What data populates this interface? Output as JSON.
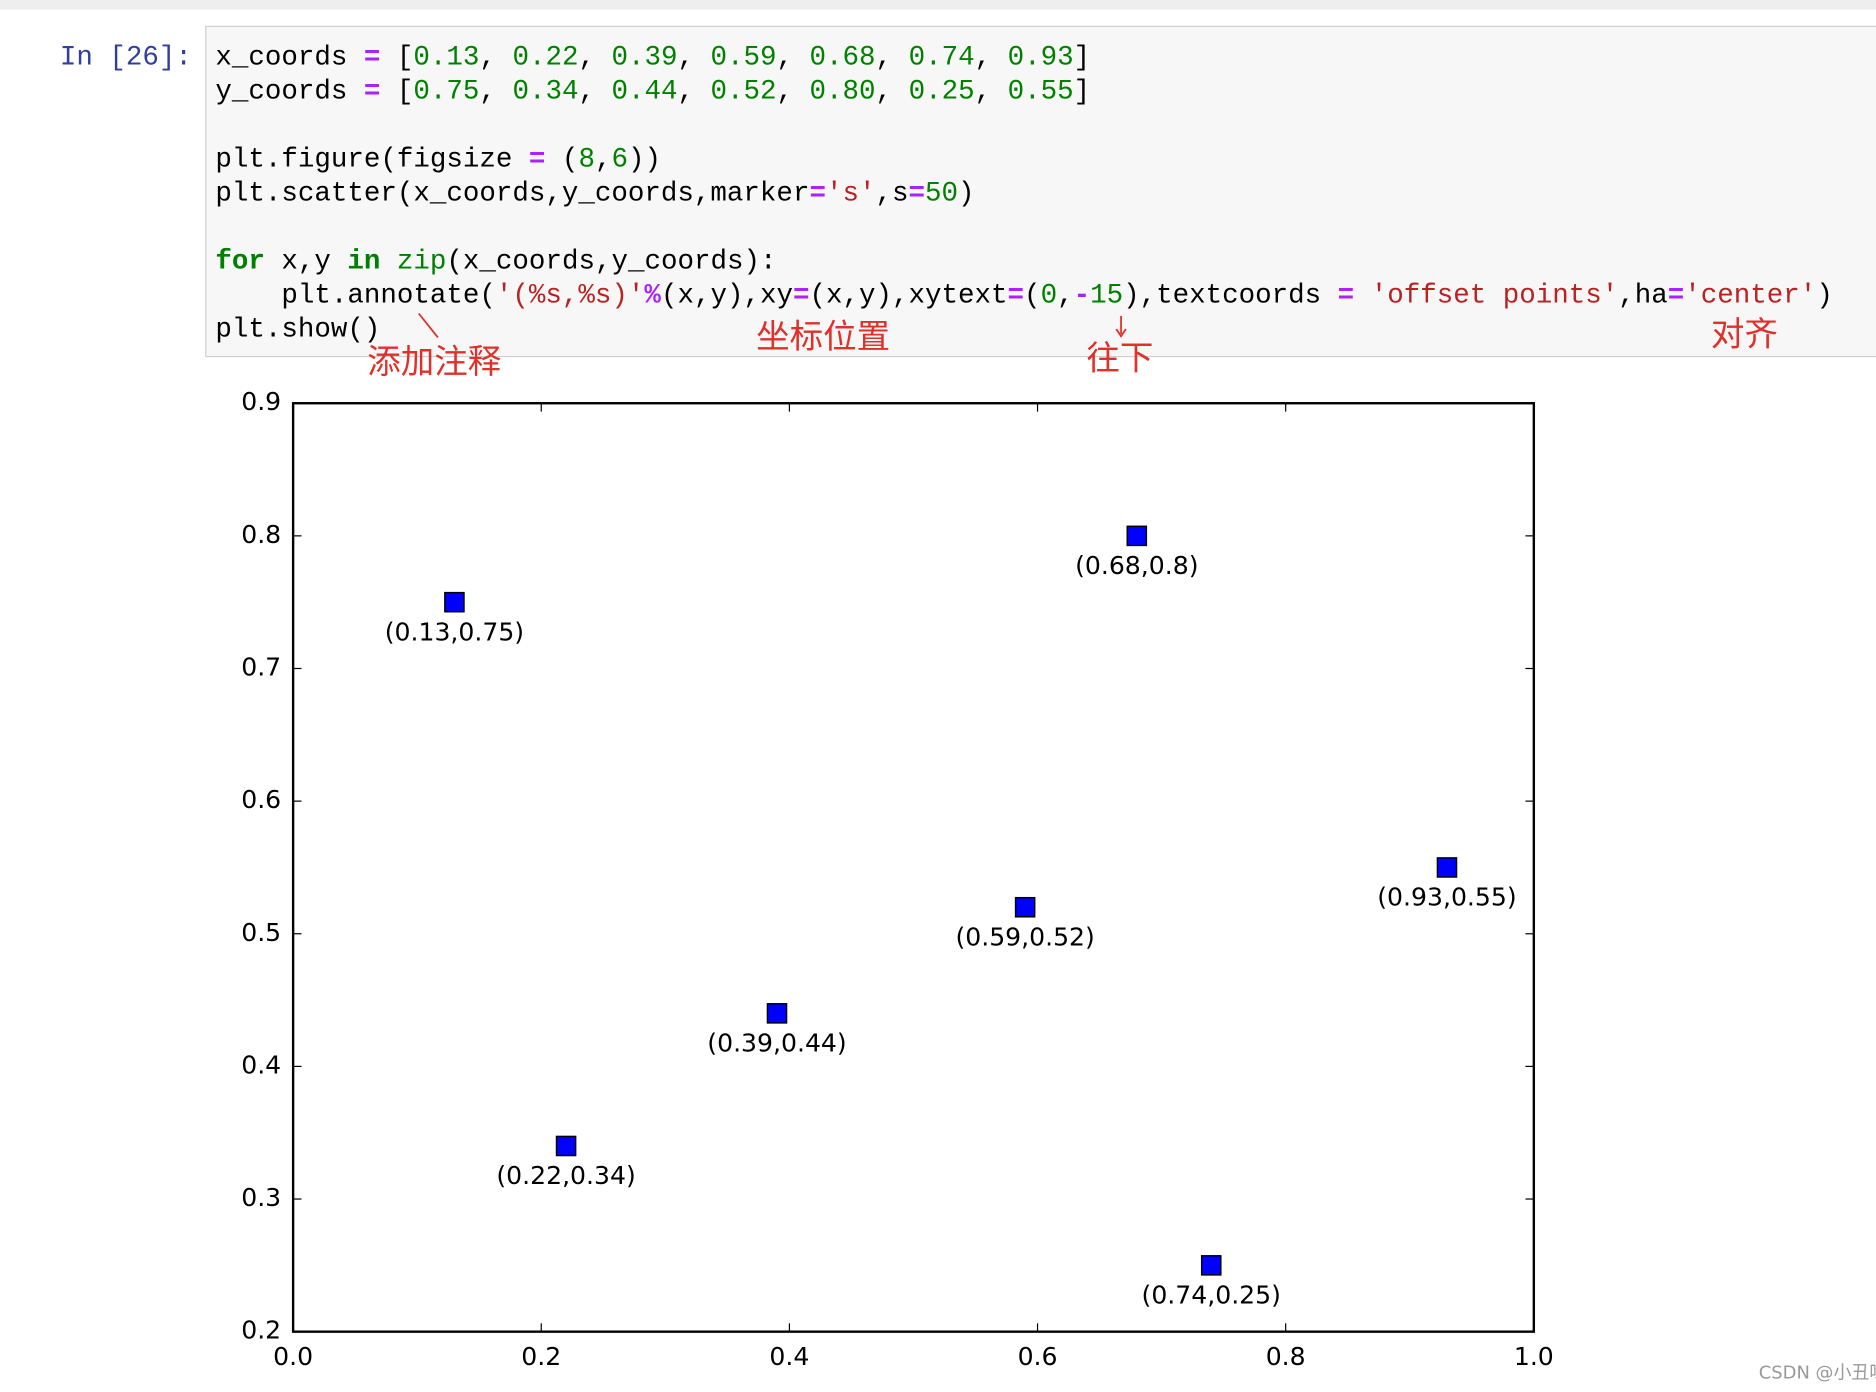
{
  "prompt": "In [26]:",
  "code": {
    "lines": [
      [
        {
          "t": "x_coords "
        },
        {
          "t": "=",
          "c": "#aa22ff",
          "b": true
        },
        {
          "t": " ["
        },
        {
          "t": "0.13",
          "c": "#008000"
        },
        {
          "t": ", "
        },
        {
          "t": "0.22",
          "c": "#008000"
        },
        {
          "t": ", "
        },
        {
          "t": "0.39",
          "c": "#008000"
        },
        {
          "t": ", "
        },
        {
          "t": "0.59",
          "c": "#008000"
        },
        {
          "t": ", "
        },
        {
          "t": "0.68",
          "c": "#008000"
        },
        {
          "t": ", "
        },
        {
          "t": "0.74",
          "c": "#008000"
        },
        {
          "t": ", "
        },
        {
          "t": "0.93",
          "c": "#008000"
        },
        {
          "t": "]"
        }
      ],
      [
        {
          "t": "y_coords "
        },
        {
          "t": "=",
          "c": "#aa22ff",
          "b": true
        },
        {
          "t": " ["
        },
        {
          "t": "0.75",
          "c": "#008000"
        },
        {
          "t": ", "
        },
        {
          "t": "0.34",
          "c": "#008000"
        },
        {
          "t": ", "
        },
        {
          "t": "0.44",
          "c": "#008000"
        },
        {
          "t": ", "
        },
        {
          "t": "0.52",
          "c": "#008000"
        },
        {
          "t": ", "
        },
        {
          "t": "0.80",
          "c": "#008000"
        },
        {
          "t": ", "
        },
        {
          "t": "0.25",
          "c": "#008000"
        },
        {
          "t": ", "
        },
        {
          "t": "0.55",
          "c": "#008000"
        },
        {
          "t": "]"
        }
      ],
      [],
      [
        {
          "t": "plt.figure(figsize "
        },
        {
          "t": "=",
          "c": "#aa22ff",
          "b": true
        },
        {
          "t": " ("
        },
        {
          "t": "8",
          "c": "#008000"
        },
        {
          "t": ","
        },
        {
          "t": "6",
          "c": "#008000"
        },
        {
          "t": "))"
        }
      ],
      [
        {
          "t": "plt.scatter(x_coords,y_coords,marker"
        },
        {
          "t": "=",
          "c": "#aa22ff",
          "b": true
        },
        {
          "t": "'s'",
          "c": "#ba2121"
        },
        {
          "t": ",s"
        },
        {
          "t": "=",
          "c": "#aa22ff",
          "b": true
        },
        {
          "t": "50",
          "c": "#008000"
        },
        {
          "t": ")"
        }
      ],
      [],
      [
        {
          "t": "for",
          "c": "#008000",
          "b": true
        },
        {
          "t": " x,y "
        },
        {
          "t": "in",
          "c": "#008000",
          "b": true
        },
        {
          "t": " "
        },
        {
          "t": "zip",
          "c": "#008000"
        },
        {
          "t": "(x_coords,y_coords):"
        }
      ],
      [
        {
          "t": "    plt.annotate("
        },
        {
          "t": "'(%s,%s)'",
          "c": "#ba2121"
        },
        {
          "t": "%",
          "c": "#aa22ff",
          "b": true
        },
        {
          "t": "(x,y),xy"
        },
        {
          "t": "=",
          "c": "#aa22ff",
          "b": true
        },
        {
          "t": "(x,y),xytext"
        },
        {
          "t": "=",
          "c": "#aa22ff",
          "b": true
        },
        {
          "t": "("
        },
        {
          "t": "0",
          "c": "#008000"
        },
        {
          "t": ","
        },
        {
          "t": "-",
          "c": "#aa22ff",
          "b": true
        },
        {
          "t": "15",
          "c": "#008000"
        },
        {
          "t": "),textcoords "
        },
        {
          "t": "=",
          "c": "#aa22ff",
          "b": true
        },
        {
          "t": " "
        },
        {
          "t": "'offset points'",
          "c": "#ba2121"
        },
        {
          "t": ",ha"
        },
        {
          "t": "=",
          "c": "#aa22ff",
          "b": true
        },
        {
          "t": "'center'",
          "c": "#ba2121"
        },
        {
          "t": ")"
        }
      ],
      [
        {
          "t": "plt.show()"
        }
      ]
    ]
  },
  "notes": [
    "添加注释",
    "坐标位置",
    "往下",
    "对齐"
  ],
  "watermark": "CSDN @小丑呀~",
  "chart_data": {
    "type": "scatter",
    "x": [
      0.13,
      0.22,
      0.39,
      0.59,
      0.68,
      0.74,
      0.93
    ],
    "values": [
      0.75,
      0.34,
      0.44,
      0.52,
      0.8,
      0.25,
      0.55
    ],
    "point_labels": [
      "(0.13,0.75)",
      "(0.22,0.34)",
      "(0.39,0.44)",
      "(0.59,0.52)",
      "(0.68,0.8)",
      "(0.74,0.25)",
      "(0.93,0.55)"
    ],
    "color": "#0000ff",
    "xlim": [
      0,
      1
    ],
    "ylim": [
      0.2,
      0.9
    ],
    "xticks": [
      {
        "value": 0,
        "label": "0.0"
      },
      0.2,
      0.4,
      0.6,
      0.8,
      {
        "value": 1,
        "label": "1.0"
      }
    ],
    "yticks": [
      0.2,
      0.3,
      0.4,
      0.5,
      0.6,
      0.7,
      0.8,
      0.9
    ]
  }
}
